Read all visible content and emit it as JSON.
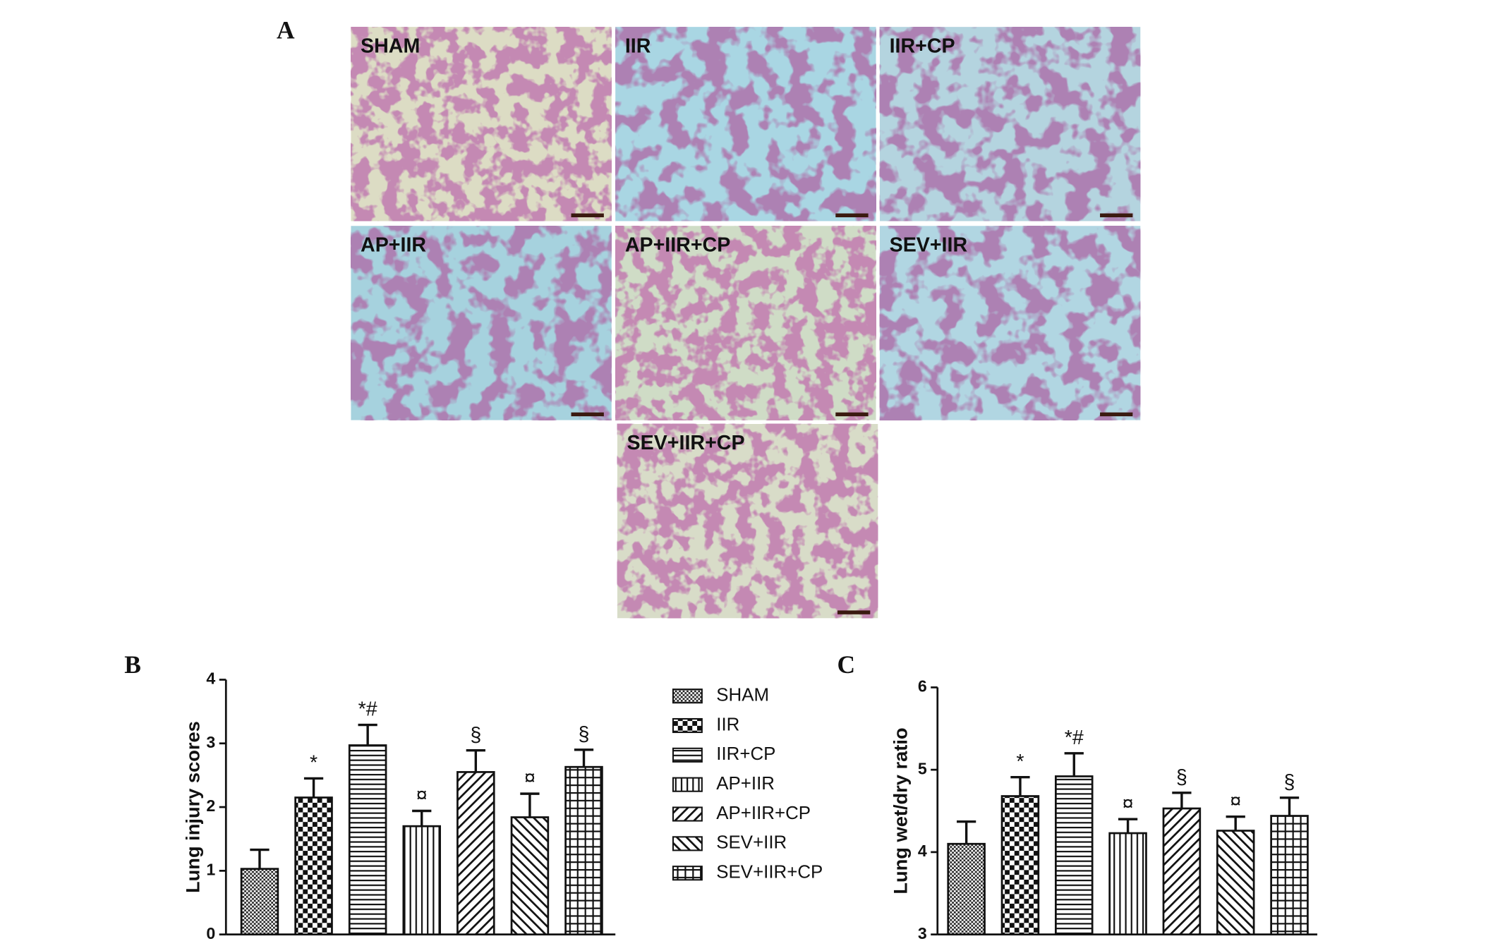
{
  "panel_labels": {
    "a": "A",
    "b": "B",
    "c": "C"
  },
  "micrographs": [
    {
      "label": "SHAM"
    },
    {
      "label": "IIR"
    },
    {
      "label": "IIR+CP"
    },
    {
      "label": "AP+IIR"
    },
    {
      "label": "AP+IIR+CP"
    },
    {
      "label": "SEV+IIR"
    },
    {
      "label": "SEV+IIR+CP"
    }
  ],
  "chart_data": [
    {
      "type": "bar",
      "y_label": "Lung injury scores",
      "categories": [
        "SHAM",
        "IIR",
        "IIR+CP",
        "AP+IIR",
        "AP+IIR+CP",
        "SEV+IIR",
        "SEV+IIR+CP"
      ],
      "values": [
        1.03,
        2.15,
        2.97,
        1.7,
        2.55,
        1.84,
        2.63
      ],
      "errors": [
        0.3,
        0.3,
        0.32,
        0.24,
        0.34,
        0.37,
        0.27
      ],
      "annotations": [
        null,
        "*",
        "*#",
        "¤",
        "§",
        "¤",
        "§"
      ],
      "ylim": [
        0,
        4
      ],
      "yticks": [
        0,
        1,
        2,
        3,
        4
      ],
      "legend": true
    },
    {
      "type": "bar",
      "y_label": "Lung wet/dry ratio",
      "values": [
        4.1,
        4.68,
        4.92,
        4.23,
        4.53,
        4.26,
        4.44
      ],
      "errors": [
        0.27,
        0.23,
        0.28,
        0.17,
        0.19,
        0.17,
        0.22
      ],
      "annotations": [
        null,
        "*",
        "*#",
        "¤",
        "§",
        "¤",
        "§"
      ],
      "ylim": [
        3,
        6
      ],
      "yticks": [
        3,
        4,
        5,
        6
      ],
      "legend": false
    }
  ]
}
